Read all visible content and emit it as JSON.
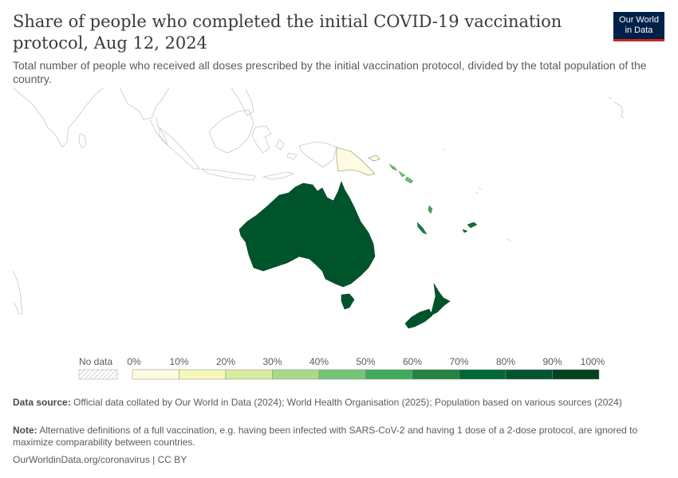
{
  "header": {
    "title": "Share of people who completed the initial COVID-19 vaccination protocol, Aug 12, 2024",
    "subtitle": "Total number of people who received all doses prescribed by the initial vaccination protocol, divided by the total population of the country.",
    "logo_line1": "Our World",
    "logo_line2": "in Data"
  },
  "map": {
    "region": "Oceania",
    "countries": [
      {
        "name": "Australia",
        "share_pct_bin": "70-80%",
        "color": "#00542c"
      },
      {
        "name": "New Zealand",
        "share_pct_bin": "70-80%",
        "color": "#00542c"
      },
      {
        "name": "Papua New Guinea",
        "share_pct_bin": "0-10%",
        "color": "#fdfce0"
      },
      {
        "name": "Solomon Islands",
        "share_pct_bin": "30-40%",
        "color": "#6cbd6f"
      },
      {
        "name": "Vanuatu",
        "share_pct_bin": "40-50%",
        "color": "#3ea65a"
      },
      {
        "name": "Fiji",
        "share_pct_bin": "60-70%",
        "color": "#116c3b"
      },
      {
        "name": "New Caledonia",
        "share_pct_bin": "60-70%",
        "color": "#1a7a43"
      }
    ]
  },
  "legend": {
    "no_data_label": "No data",
    "ticks": [
      "0%",
      "10%",
      "20%",
      "30%",
      "40%",
      "50%",
      "60%",
      "70%",
      "80%",
      "90%",
      "100%"
    ],
    "colors": [
      "#fdfce0",
      "#f5f8b8",
      "#d6eda0",
      "#a8d98a",
      "#74c476",
      "#41ab5d",
      "#238443",
      "#006837",
      "#005530",
      "#00411f"
    ]
  },
  "footer": {
    "source_label": "Data source:",
    "source_text": "Official data collated by Our World in Data (2024); World Health Organisation (2025); Population based on various sources (2024)",
    "note_label": "Note:",
    "note_text": "Alternative definitions of a full vaccination, e.g. having been infected with SARS-CoV-2 and having 1 dose of a 2-dose protocol, are ignored to maximize comparability between countries.",
    "url": "OurWorldinData.org/coronavirus | CC BY"
  }
}
